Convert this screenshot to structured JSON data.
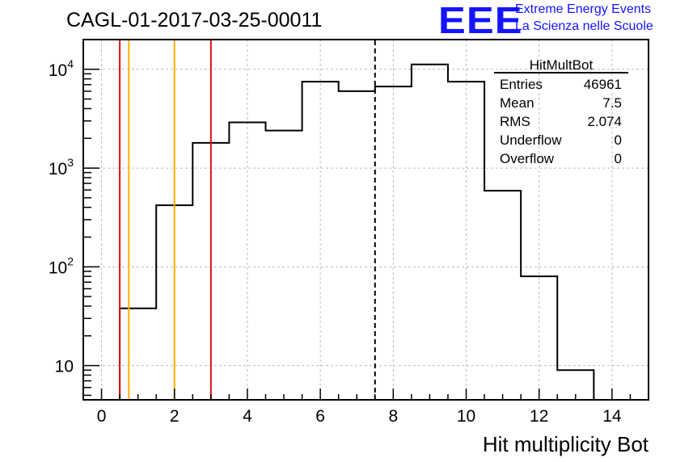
{
  "title": "CAGL-01-2017-03-25-00011",
  "logo": {
    "text": "EEE",
    "line1": "Extreme Energy Events",
    "line2": "La Scienza nelle Scuole"
  },
  "stats_box": {
    "name": "HitMultBot",
    "rows": [
      {
        "label": "Entries",
        "value": "46961"
      },
      {
        "label": "Mean",
        "value": "7.5"
      },
      {
        "label": "RMS",
        "value": "2.074"
      },
      {
        "label": "Underflow",
        "value": "0"
      },
      {
        "label": "Overflow",
        "value": "0"
      }
    ]
  },
  "colors": {
    "red_line": "#e01010",
    "orange_line": "#ffb000",
    "histogram": "#000000",
    "grid": "#bbbbbb",
    "logo": "#1414ff"
  },
  "chart_data": {
    "type": "histogram",
    "title": "CAGL-01-2017-03-25-00011",
    "xlabel": "Hit multiplicity Bot",
    "ylabel": "",
    "xlim": [
      -0.5,
      15
    ],
    "ylim": [
      4.5,
      20000
    ],
    "yscale": "log",
    "grid": true,
    "x_ticks": [
      0,
      2,
      4,
      6,
      8,
      10,
      12,
      14
    ],
    "y_ticks": [
      {
        "value": 10,
        "label": "10"
      },
      {
        "value": 100,
        "label": "10",
        "exp": "2"
      },
      {
        "value": 1000,
        "label": "10",
        "exp": "3"
      },
      {
        "value": 10000,
        "label": "10",
        "exp": "4"
      }
    ],
    "bins": [
      {
        "x": 1,
        "value": 38
      },
      {
        "x": 2,
        "value": 420
      },
      {
        "x": 3,
        "value": 1800
      },
      {
        "x": 4,
        "value": 2900
      },
      {
        "x": 5,
        "value": 2400
      },
      {
        "x": 6,
        "value": 7500
      },
      {
        "x": 7,
        "value": 6000
      },
      {
        "x": 8,
        "value": 6700
      },
      {
        "x": 9,
        "value": 11200
      },
      {
        "x": 10,
        "value": 7500
      },
      {
        "x": 11,
        "value": 590
      },
      {
        "x": 12,
        "value": 80
      },
      {
        "x": 13,
        "value": 9
      }
    ],
    "vertical_lines": [
      {
        "x": 0.5,
        "color": "red"
      },
      {
        "x": 0.75,
        "color": "orange"
      },
      {
        "x": 2,
        "color": "orange"
      },
      {
        "x": 3,
        "color": "red"
      },
      {
        "x": 7.5,
        "color": "black",
        "style": "dashed"
      }
    ]
  }
}
